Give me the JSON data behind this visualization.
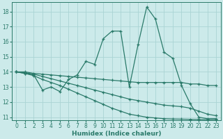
{
  "xlabel": "Humidex (Indice chaleur)",
  "bg_color": "#cceaea",
  "line_color": "#2a7a6a",
  "grid_color": "#aad4d4",
  "xlim": [
    -0.5,
    23.5
  ],
  "ylim": [
    10.8,
    18.6
  ],
  "yticks": [
    11,
    12,
    13,
    14,
    15,
    16,
    17,
    18
  ],
  "xticks": [
    0,
    1,
    2,
    3,
    4,
    5,
    6,
    7,
    8,
    9,
    10,
    11,
    12,
    13,
    14,
    15,
    16,
    17,
    18,
    19,
    20,
    21,
    22,
    23
  ],
  "lines": [
    {
      "x": [
        0,
        1,
        2,
        3,
        4,
        5,
        6,
        7,
        8,
        9,
        10,
        11,
        12,
        13,
        14,
        15,
        16,
        17,
        18,
        19,
        20,
        21,
        22,
        23
      ],
      "y": [
        14.0,
        13.9,
        13.8,
        12.8,
        13.0,
        12.7,
        13.5,
        13.8,
        14.7,
        14.5,
        16.2,
        16.7,
        16.7,
        13.0,
        15.8,
        18.3,
        17.5,
        15.3,
        14.9,
        13.1,
        11.9,
        11.0,
        10.9,
        10.9
      ]
    },
    {
      "x": [
        0,
        1,
        2,
        3,
        4,
        5,
        6,
        7,
        8,
        9,
        10,
        11,
        12,
        13,
        14,
        15,
        16,
        17,
        18,
        19,
        20,
        21,
        22,
        23
      ],
      "y": [
        14.0,
        14.0,
        13.9,
        13.85,
        13.8,
        13.75,
        13.7,
        13.65,
        13.6,
        13.55,
        13.5,
        13.45,
        13.4,
        13.35,
        13.3,
        13.3,
        13.3,
        13.3,
        13.3,
        13.3,
        13.2,
        13.2,
        13.1,
        13.1
      ]
    },
    {
      "x": [
        0,
        1,
        2,
        3,
        4,
        5,
        6,
        7,
        8,
        9,
        10,
        11,
        12,
        13,
        14,
        15,
        16,
        17,
        18,
        19,
        20,
        21,
        22,
        23
      ],
      "y": [
        14.0,
        13.95,
        13.85,
        13.7,
        13.55,
        13.4,
        13.25,
        13.1,
        12.95,
        12.8,
        12.65,
        12.5,
        12.35,
        12.2,
        12.1,
        12.0,
        11.9,
        11.8,
        11.75,
        11.7,
        11.6,
        11.4,
        11.2,
        11.1
      ]
    },
    {
      "x": [
        0,
        1,
        2,
        3,
        4,
        5,
        6,
        7,
        8,
        9,
        10,
        11,
        12,
        13,
        14,
        15,
        16,
        17,
        18,
        19,
        20,
        21,
        22,
        23
      ],
      "y": [
        14.0,
        13.9,
        13.75,
        13.5,
        13.3,
        13.1,
        12.85,
        12.6,
        12.35,
        12.1,
        11.85,
        11.6,
        11.4,
        11.2,
        11.1,
        11.0,
        10.95,
        10.9,
        10.88,
        10.87,
        10.86,
        10.85,
        10.84,
        10.85
      ]
    }
  ]
}
